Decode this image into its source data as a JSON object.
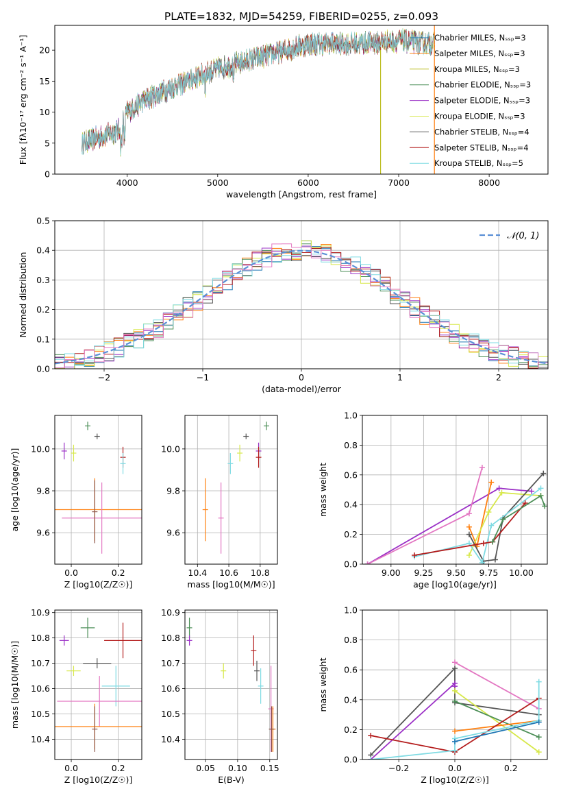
{
  "figure_title": "PLATE=1832, MJD=54259, FIBERID=0255, z=0.093",
  "chart_data": [
    {
      "id": "spectrum",
      "type": "line",
      "xlabel": "wavelength [Angstrom, rest frame]",
      "ylabel": "Flux [fλ10⁻¹⁷ erg cm⁻² s⁻¹ A⁻¹]",
      "xlim": [
        3200,
        8650
      ],
      "ylim": [
        0,
        24
      ],
      "xticks": [
        4000,
        5000,
        6000,
        7000,
        8000
      ],
      "yticks": [
        0,
        5,
        10,
        15,
        20
      ],
      "grid": false,
      "legend_position": "top-right",
      "continuum": {
        "wavelength": [
          3500,
          3700,
          3900,
          4000,
          4200,
          4500,
          5000,
          5500,
          6000,
          6500,
          7000,
          7400
        ],
        "flux": [
          5,
          6,
          7,
          10,
          12,
          14,
          17,
          19,
          21,
          21,
          21.5,
          21
        ]
      },
      "series": [
        {
          "name": "Chabrier MILES, N_SSP=3",
          "color": "#1f77b4"
        },
        {
          "name": "Salpeter MILES, N_SSP=3",
          "color": "#ff7f0e"
        },
        {
          "name": "Kroupa MILES, N_SSP=3",
          "color": "#bcbd22"
        },
        {
          "name": "Chabrier ELODIE, N_SSP=3",
          "color": "#4d8f58"
        },
        {
          "name": "Salpeter ELODIE, N_SSP=3",
          "color": "#9b30c6"
        },
        {
          "name": "Kroupa ELODIE, N_SSP=3",
          "color": "#d7e84a"
        },
        {
          "name": "Chabrier STELIB, N_SSP=4",
          "color": "#555555"
        },
        {
          "name": "Salpeter STELIB, N_SSP=4",
          "color": "#b41c1c"
        },
        {
          "name": "Kroupa STELIB, N_SSP=5",
          "color": "#7fdbe3"
        }
      ]
    },
    {
      "id": "residuals",
      "type": "histogram",
      "xlabel": "(data-model)/error",
      "ylabel": "Normed distribution",
      "xlim": [
        -2.5,
        2.5
      ],
      "ylim": [
        0,
        0.5
      ],
      "xticks": [
        -2,
        -1,
        0,
        1,
        2
      ],
      "yticks": [
        0.0,
        0.1,
        0.2,
        0.3,
        0.4,
        0.5
      ],
      "grid": true,
      "legend_position": "top-right",
      "legend": "N(0,1)",
      "bin_width": 0.1,
      "histogram_colors": [
        "#1f77b4",
        "#ff7f0e",
        "#4d8f58",
        "#9b30c6",
        "#d7e84a",
        "#555555",
        "#b41c1c",
        "#7fdbe3",
        "#e377c2"
      ],
      "reference_curve": {
        "type": "normal",
        "mean": 0,
        "sigma": 1,
        "color": "#5a8fd6",
        "style": "dashed"
      }
    },
    {
      "id": "age_vs_Z",
      "type": "scatter",
      "xlabel": "Z [log10(Z/Z☉)]",
      "ylabel": "age [log10(age/yr)]",
      "xlim": [
        -0.07,
        0.3
      ],
      "ylim": [
        9.45,
        10.16
      ],
      "xticks": [
        0.0,
        0.2
      ],
      "yticks": [
        9.6,
        9.8,
        10.0
      ],
      "grid": true,
      "points": [
        {
          "x": 0.1,
          "y": 9.71,
          "xerr": 0.21,
          "yerr": 0.15,
          "color": "#ff7f0e"
        },
        {
          "x": 0.13,
          "y": 9.67,
          "xerr": 0.17,
          "yerr": 0.17,
          "color": "#e377c2"
        },
        {
          "x": 0.1,
          "y": 9.7,
          "xerr": 0.0,
          "yerr": 0.15,
          "color": "#8c564b"
        },
        {
          "x": 0.07,
          "y": 10.11,
          "xerr": 0.0,
          "yerr": 0.02,
          "color": "#4d8f58"
        },
        {
          "x": 0.11,
          "y": 10.06,
          "xerr": 0.0,
          "yerr": 0.0,
          "color": "#555555"
        },
        {
          "x": -0.03,
          "y": 9.99,
          "xerr": 0.0,
          "yerr": 0.04,
          "color": "#9b30c6"
        },
        {
          "x": 0.01,
          "y": 9.98,
          "xerr": 0.0,
          "yerr": 0.04,
          "color": "#d7e84a"
        },
        {
          "x": 0.22,
          "y": 9.96,
          "xerr": 0.0,
          "yerr": 0.05,
          "color": "#b41c1c"
        },
        {
          "x": 0.22,
          "y": 9.93,
          "xerr": 0.0,
          "yerr": 0.05,
          "color": "#7fdbe3"
        }
      ]
    },
    {
      "id": "age_vs_mass",
      "type": "scatter",
      "xlabel": "mass [log10(M/M☉)]",
      "ylabel": "",
      "xlim": [
        10.32,
        10.91
      ],
      "ylim": [
        9.45,
        10.16
      ],
      "xticks": [
        10.4,
        10.6,
        10.8
      ],
      "yticks": [
        9.6,
        9.8,
        10.0
      ],
      "grid": true,
      "points": [
        {
          "x": 10.45,
          "y": 9.71,
          "xerr": 0.0,
          "yerr": 0.15,
          "color": "#ff7f0e"
        },
        {
          "x": 10.55,
          "y": 9.67,
          "xerr": 0.0,
          "yerr": 0.17,
          "color": "#e377c2"
        },
        {
          "x": 10.84,
          "y": 10.11,
          "xerr": 0.0,
          "yerr": 0.02,
          "color": "#4d8f58"
        },
        {
          "x": 10.71,
          "y": 10.06,
          "xerr": 0.0,
          "yerr": 0.0,
          "color": "#555555"
        },
        {
          "x": 10.79,
          "y": 9.99,
          "xerr": 0.0,
          "yerr": 0.04,
          "color": "#9b30c6"
        },
        {
          "x": 10.67,
          "y": 9.98,
          "xerr": 0.0,
          "yerr": 0.04,
          "color": "#d7e84a"
        },
        {
          "x": 10.79,
          "y": 9.96,
          "xerr": 0.0,
          "yerr": 0.05,
          "color": "#b41c1c"
        },
        {
          "x": 10.61,
          "y": 9.93,
          "xerr": 0.0,
          "yerr": 0.05,
          "color": "#7fdbe3"
        }
      ]
    },
    {
      "id": "mass_weight_vs_age",
      "type": "line",
      "xlabel": "age [log10(age/yr)]",
      "ylabel": "mass weight",
      "xlim": [
        8.78,
        10.2
      ],
      "ylim": [
        0.0,
        1.0
      ],
      "xticks": [
        9.0,
        9.25,
        9.5,
        9.75,
        10.0
      ],
      "yticks": [
        0.0,
        0.2,
        0.4,
        0.6,
        0.8,
        1.0
      ],
      "grid": true,
      "series": [
        {
          "color": "#9b30c6",
          "x": [
            8.82,
            9.83,
            10.08
          ],
          "y": [
            0.0,
            0.51,
            0.49
          ]
        },
        {
          "color": "#e377c2",
          "x": [
            8.82,
            9.6,
            9.7
          ],
          "y": [
            0.0,
            0.34,
            0.65
          ]
        },
        {
          "color": "#ff7f0e",
          "x": [
            9.6,
            9.66,
            9.77
          ],
          "y": [
            0.25,
            0.12,
            0.55
          ]
        },
        {
          "color": "#d7e84a",
          "x": [
            9.6,
            9.75,
            9.85,
            10.15
          ],
          "y": [
            0.06,
            0.35,
            0.48,
            0.46
          ]
        },
        {
          "color": "#555555",
          "x": [
            9.6,
            9.71,
            9.8,
            9.86,
            10.17
          ],
          "y": [
            0.2,
            0.02,
            0.03,
            0.31,
            0.61
          ]
        },
        {
          "color": "#7fdbe3",
          "x": [
            9.18,
            9.6,
            9.7,
            9.77,
            10.15
          ],
          "y": [
            0.05,
            0.14,
            0.01,
            0.26,
            0.51
          ]
        },
        {
          "color": "#b41c1c",
          "x": [
            9.18,
            9.71,
            9.78,
            10.03
          ],
          "y": [
            0.06,
            0.14,
            0.15,
            0.41
          ]
        },
        {
          "color": "#4d8f58",
          "x": [
            9.78,
            9.86,
            10.15,
            10.18
          ],
          "y": [
            0.15,
            0.3,
            0.46,
            0.39
          ]
        }
      ]
    },
    {
      "id": "mass_vs_Z",
      "type": "scatter",
      "xlabel": "Z [log10(Z/Z☉)]",
      "ylabel": "mass [log10(M/M☉)]",
      "xlim": [
        -0.07,
        0.3
      ],
      "ylim": [
        10.32,
        10.91
      ],
      "xticks": [
        0.0,
        0.2
      ],
      "yticks": [
        10.4,
        10.5,
        10.6,
        10.7,
        10.8,
        10.9
      ],
      "grid": true,
      "points": [
        {
          "x": 0.07,
          "y": 10.84,
          "xerr": 0.03,
          "yerr": 0.04,
          "color": "#4d8f58"
        },
        {
          "x": -0.03,
          "y": 10.79,
          "xerr": 0.02,
          "yerr": 0.02,
          "color": "#9b30c6"
        },
        {
          "x": 0.22,
          "y": 10.79,
          "xerr": 0.08,
          "yerr": 0.07,
          "color": "#b41c1c"
        },
        {
          "x": 0.11,
          "y": 10.7,
          "xerr": 0.06,
          "yerr": 0.02,
          "color": "#555555"
        },
        {
          "x": 0.01,
          "y": 10.67,
          "xerr": 0.03,
          "yerr": 0.02,
          "color": "#d7e84a"
        },
        {
          "x": 0.19,
          "y": 10.61,
          "xerr": 0.06,
          "yerr": 0.08,
          "color": "#7fdbe3"
        },
        {
          "x": 0.12,
          "y": 10.55,
          "xerr": 0.18,
          "yerr": 0.1,
          "color": "#e377c2"
        },
        {
          "x": 0.1,
          "y": 10.45,
          "xerr": 0.2,
          "yerr": 0.09,
          "color": "#ff7f0e"
        },
        {
          "x": 0.1,
          "y": 10.44,
          "xerr": 0.0,
          "yerr": 0.09,
          "color": "#8c564b"
        }
      ]
    },
    {
      "id": "mass_vs_ebv",
      "type": "scatter",
      "xlabel": "E(B-V)",
      "ylabel": "",
      "xlim": [
        0.018,
        0.162
      ],
      "ylim": [
        10.32,
        10.91
      ],
      "xticks": [
        0.05,
        0.1,
        0.15
      ],
      "yticks": [
        10.4,
        10.5,
        10.6,
        10.7,
        10.8,
        10.9
      ],
      "grid": true,
      "points": [
        {
          "x": 0.025,
          "y": 10.84,
          "xerr": 0.0,
          "yerr": 0.04,
          "color": "#4d8f58"
        },
        {
          "x": 0.025,
          "y": 10.79,
          "xerr": 0.0,
          "yerr": 0.02,
          "color": "#9b30c6"
        },
        {
          "x": 0.078,
          "y": 10.67,
          "xerr": 0.0,
          "yerr": 0.03,
          "color": "#d7e84a"
        },
        {
          "x": 0.125,
          "y": 10.75,
          "xerr": 0.0,
          "yerr": 0.06,
          "color": "#b41c1c"
        },
        {
          "x": 0.13,
          "y": 10.67,
          "xerr": 0.0,
          "yerr": 0.04,
          "color": "#555555"
        },
        {
          "x": 0.136,
          "y": 10.61,
          "xerr": 0.0,
          "yerr": 0.07,
          "color": "#7fdbe3"
        },
        {
          "x": 0.152,
          "y": 10.52,
          "xerr": 0.0,
          "yerr": 0.17,
          "color": "#e377c2"
        },
        {
          "x": 0.155,
          "y": 10.44,
          "xerr": 0.0,
          "yerr": 0.09,
          "color": "#ff7f0e"
        },
        {
          "x": 0.153,
          "y": 10.44,
          "xerr": 0.0,
          "yerr": 0.09,
          "color": "#8c564b"
        }
      ]
    },
    {
      "id": "mass_weight_vs_Z",
      "type": "line",
      "xlabel": "Z [log10(Z/Z☉)]",
      "ylabel": "mass weight",
      "xlim": [
        -0.33,
        0.33
      ],
      "ylim": [
        0.0,
        1.0
      ],
      "xticks": [
        -0.2,
        0.0,
        0.2
      ],
      "yticks": [
        0.0,
        0.2,
        0.4,
        0.6,
        0.8,
        1.0
      ],
      "grid": true,
      "series": [
        {
          "color": "#555555",
          "x": [
            -0.3,
            0.0,
            0.0,
            0.3
          ],
          "y": [
            0.03,
            0.61,
            0.38,
            0.3
          ]
        },
        {
          "color": "#9b30c6",
          "x": [
            -0.3,
            0.0,
            0.0
          ],
          "y": [
            0.0,
            0.51,
            0.49
          ]
        },
        {
          "color": "#e377c2",
          "x": [
            0.0,
            0.3
          ],
          "y": [
            0.65,
            0.34
          ]
        },
        {
          "color": "#d7e84a",
          "x": [
            0.0,
            0.3
          ],
          "y": [
            0.46,
            0.05
          ]
        },
        {
          "color": "#4d8f58",
          "x": [
            0.0,
            0.3
          ],
          "y": [
            0.39,
            0.15
          ]
        },
        {
          "color": "#ff7f0e",
          "x": [
            0.0,
            0.3
          ],
          "y": [
            0.19,
            0.26
          ]
        },
        {
          "color": "#b41c1c",
          "x": [
            -0.3,
            0.0,
            0.3
          ],
          "y": [
            0.16,
            0.05,
            0.41
          ]
        },
        {
          "color": "#7fdbe3",
          "x": [
            -0.3,
            0.0,
            0.0,
            0.3,
            0.3
          ],
          "y": [
            0.0,
            0.06,
            0.14,
            0.26,
            0.52
          ]
        },
        {
          "color": "#1f77b4",
          "x": [
            0.0,
            0.3
          ],
          "y": [
            0.12,
            0.25
          ]
        }
      ]
    }
  ]
}
